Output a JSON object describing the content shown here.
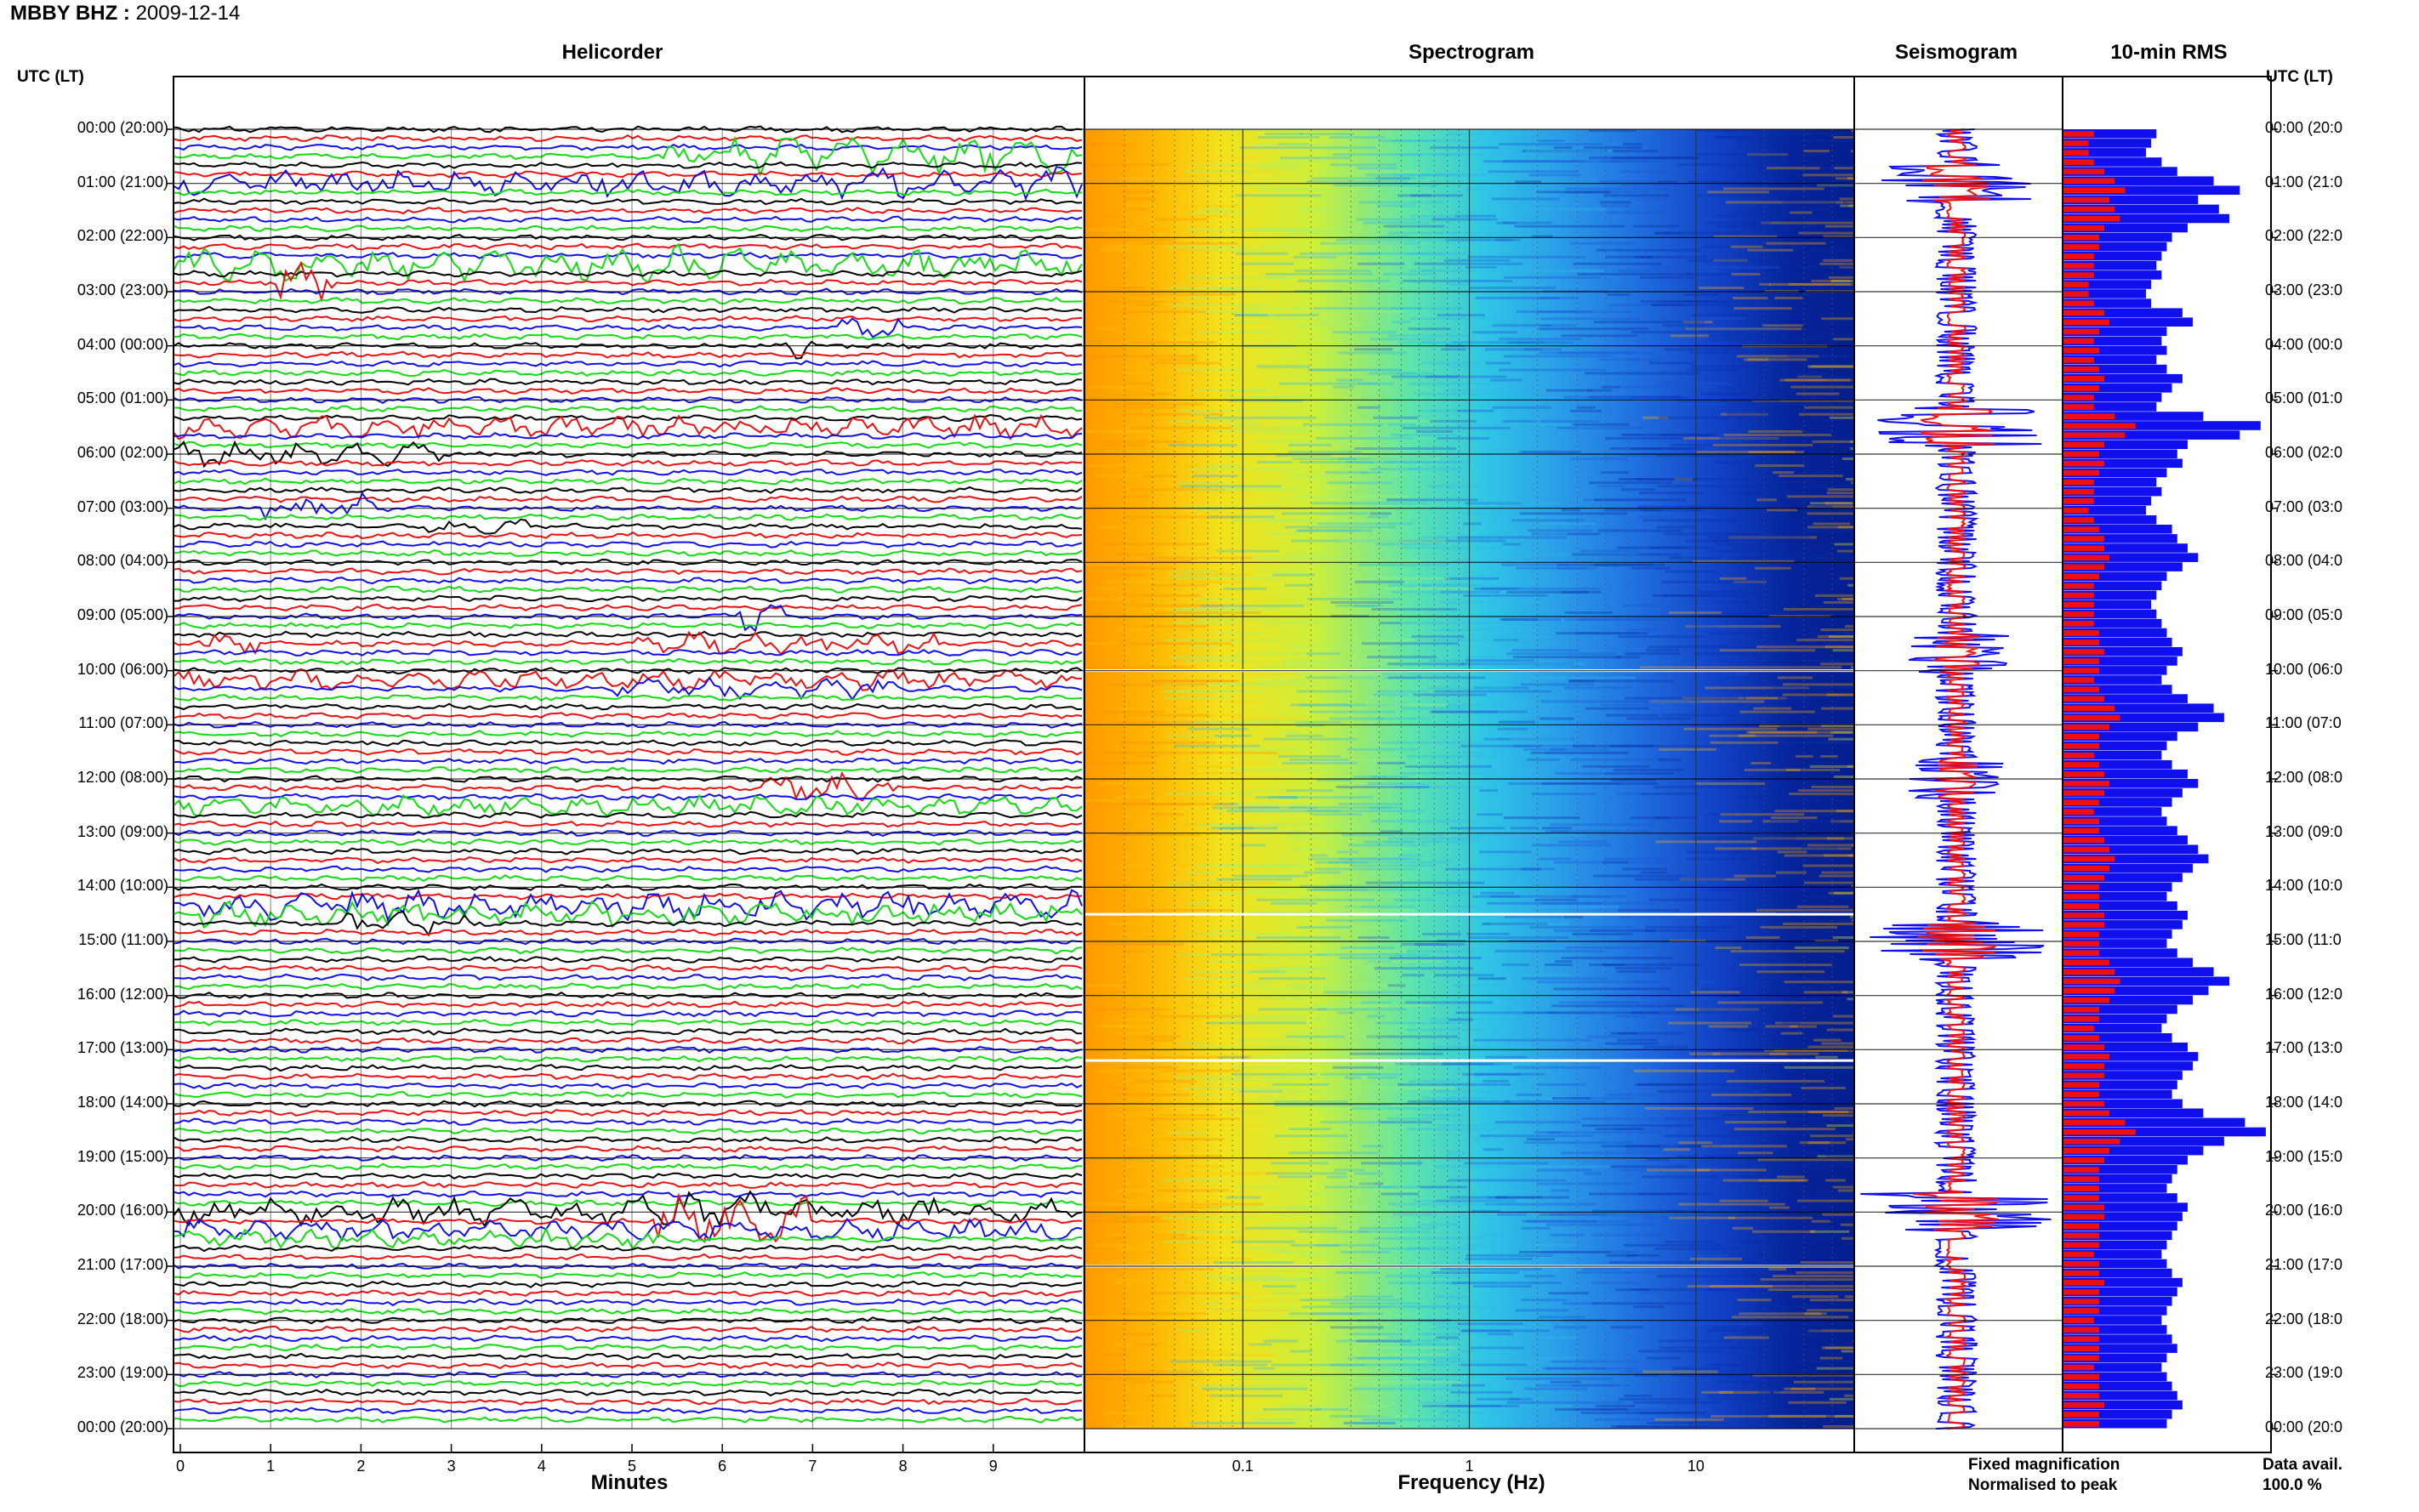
{
  "header": {
    "station": "MBBY BHZ",
    "date": "2009-12-14"
  },
  "panels": {
    "helicorder": "Helicorder",
    "spectrogram": "Spectrogram",
    "seismogram": "Seismogram",
    "rms": "10-min RMS"
  },
  "left_axis_label": "UTC (LT)",
  "right_axis_label": "UTC (LT)",
  "time_labels_left": [
    "00:00 (20:00)",
    "01:00 (21:00)",
    "02:00 (22:00)",
    "03:00 (23:00)",
    "04:00 (00:00)",
    "05:00 (01:00)",
    "06:00 (02:00)",
    "07:00 (03:00)",
    "08:00 (04:00)",
    "09:00 (05:00)",
    "10:00 (06:00)",
    "11:00 (07:00)",
    "12:00 (08:00)",
    "13:00 (09:00)",
    "14:00 (10:00)",
    "15:00 (11:00)",
    "16:00 (12:00)",
    "17:00 (13:00)",
    "18:00 (14:00)",
    "19:00 (15:00)",
    "20:00 (16:00)",
    "21:00 (17:00)",
    "22:00 (18:00)",
    "23:00 (19:00)",
    "00:00 (20:00)"
  ],
  "time_labels_right": [
    "00:00 (20:0",
    "01:00 (21:0",
    "02:00 (22:0",
    "03:00 (23:0",
    "04:00 (00:0",
    "05:00 (01:0",
    "06:00 (02:0",
    "07:00 (03:0",
    "08:00 (04:0",
    "09:00 (05:0",
    "10:00 (06:0",
    "11:00 (07:0",
    "12:00 (08:0",
    "13:00 (09:0",
    "14:00 (10:0",
    "15:00 (11:0",
    "16:00 (12:0",
    "17:00 (13:0",
    "18:00 (14:0",
    "19:00 (15:0",
    "20:00 (16:0",
    "21:00 (17:0",
    "22:00 (18:0",
    "23:00 (19:0",
    "00:00 (20:0"
  ],
  "helicorder_x": {
    "ticks": [
      "0",
      "1",
      "2",
      "3",
      "4",
      "5",
      "6",
      "7",
      "8",
      "9"
    ],
    "label": "Minutes"
  },
  "spectrogram_x": {
    "ticks": [
      "0.1",
      "1",
      "10"
    ],
    "label": "Frequency (Hz)"
  },
  "legend": {
    "fixed": "Fixed magnification",
    "normalised": "Normalised to peak",
    "fixed_color": "#1010ee",
    "normalised_color": "#ee1010"
  },
  "data_avail": {
    "label": "Data avail.",
    "value": "100.0 %"
  },
  "colors": {
    "trace": [
      "#000000",
      "#ee1010",
      "#1010ee",
      "#10dd10"
    ]
  },
  "chart_data": {
    "type": "heatmap",
    "title": "MBBY BHZ : 2009-12-14",
    "y_hours_utc": [
      0,
      1,
      2,
      3,
      4,
      5,
      6,
      7,
      8,
      9,
      10,
      11,
      12,
      13,
      14,
      15,
      16,
      17,
      18,
      19,
      20,
      21,
      22,
      23,
      24
    ],
    "helicorder_minutes_range": [
      0,
      10
    ],
    "spectrogram_frequency_range_hz": [
      0.02,
      50
    ],
    "spectrogram_scale": "log",
    "rms_fixed": [
      1.8,
      1.7,
      1.6,
      1.9,
      2.2,
      2.9,
      3.4,
      2.6,
      3.0,
      3.2,
      2.4,
      2.1,
      2.0,
      1.9,
      1.8,
      1.9,
      1.7,
      1.6,
      1.7,
      2.3,
      2.5,
      2.0,
      1.9,
      2.0,
      1.8,
      2.0,
      2.3,
      2.1,
      1.9,
      1.8,
      2.7,
      3.8,
      3.4,
      2.4,
      2.2,
      2.3,
      2.0,
      1.8,
      1.9,
      1.7,
      1.6,
      1.8,
      2.1,
      2.2,
      2.4,
      2.6,
      2.3,
      2.0,
      1.9,
      1.8,
      1.7,
      1.8,
      1.9,
      2.0,
      2.1,
      2.3,
      2.2,
      2.0,
      1.9,
      2.1,
      2.4,
      2.9,
      3.1,
      2.6,
      2.2,
      2.0,
      1.9,
      2.1,
      2.4,
      2.6,
      2.3,
      2.1,
      1.9,
      2.0,
      2.2,
      2.4,
      2.6,
      2.8,
      2.5,
      2.3,
      2.1,
      2.0,
      2.2,
      2.4,
      2.3,
      2.1,
      2.0,
      2.2,
      2.5,
      2.9,
      3.2,
      2.8,
      2.5,
      2.2,
      2.0,
      1.9,
      2.1,
      2.4,
      2.6,
      2.5,
      2.3,
      2.2,
      2.1,
      2.3,
      2.7,
      3.5,
      3.9,
      3.1,
      2.7,
      2.4,
      2.2,
      2.1,
      2.0,
      2.2,
      2.4,
      2.3,
      2.2,
      2.1,
      2.0,
      1.9,
      2.0,
      2.1,
      2.3,
      2.2,
      2.1,
      2.0,
      1.9,
      2.0,
      2.1,
      2.2,
      2.0,
      1.9,
      2.0,
      2.1,
      2.2,
      2.3,
      2.1,
      2.0
    ],
    "rms_normalised": [
      0.6,
      0.5,
      0.5,
      0.6,
      0.8,
      1.0,
      1.2,
      0.9,
      1.0,
      1.1,
      0.8,
      0.7,
      0.7,
      0.6,
      0.6,
      0.6,
      0.5,
      0.5,
      0.6,
      0.8,
      0.9,
      0.7,
      0.6,
      0.7,
      0.6,
      0.7,
      0.8,
      0.7,
      0.6,
      0.6,
      1.0,
      1.4,
      1.2,
      0.8,
      0.7,
      0.8,
      0.7,
      0.6,
      0.6,
      0.6,
      0.5,
      0.6,
      0.7,
      0.8,
      0.8,
      0.9,
      0.8,
      0.7,
      0.6,
      0.6,
      0.6,
      0.6,
      0.6,
      0.7,
      0.7,
      0.8,
      0.7,
      0.7,
      0.6,
      0.7,
      0.8,
      1.0,
      1.1,
      0.9,
      0.7,
      0.7,
      0.6,
      0.7,
      0.8,
      0.9,
      0.8,
      0.7,
      0.6,
      0.7,
      0.7,
      0.8,
      0.9,
      1.0,
      0.9,
      0.8,
      0.7,
      0.7,
      0.7,
      0.8,
      0.8,
      0.7,
      0.7,
      0.7,
      0.9,
      1.0,
      1.1,
      1.0,
      0.9,
      0.7,
      0.7,
      0.6,
      0.7,
      0.8,
      0.9,
      0.8,
      0.8,
      0.7,
      0.7,
      0.8,
      0.9,
      1.2,
      1.4,
      1.1,
      0.9,
      0.8,
      0.7,
      0.7,
      0.7,
      0.7,
      0.8,
      0.8,
      0.7,
      0.7,
      0.7,
      0.6,
      0.7,
      0.7,
      0.8,
      0.7,
      0.7,
      0.7,
      0.6,
      0.7,
      0.7,
      0.7,
      0.7,
      0.6,
      0.7,
      0.7,
      0.7,
      0.8,
      0.7,
      0.7
    ]
  }
}
